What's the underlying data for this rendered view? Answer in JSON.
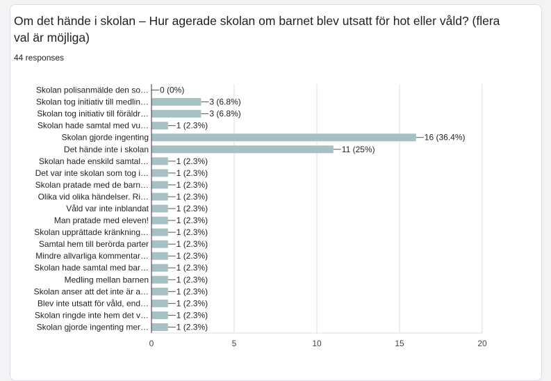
{
  "question": {
    "title": "Om det hände i skolan – Hur agerade skolan om barnet blev utsatt för hot eller våld? (flera val är möjliga)",
    "responses": "44 responses"
  },
  "colors": {
    "bar": "#a7c0c4",
    "grid": "#dddddd",
    "axis": "#333333"
  },
  "chart_data": {
    "type": "bar",
    "orientation": "horizontal",
    "title": "",
    "xlabel": "",
    "ylabel": "",
    "xlim": [
      0,
      20
    ],
    "xticks": [
      0,
      5,
      10,
      15,
      20
    ],
    "grid": true,
    "categories": [
      "Skolan polisanmälde den so…",
      "Skolan tog initiativ till medlin…",
      "Skolan tog initiativ till föräldr…",
      "Skolan hade samtal med vu…",
      "Skolan gjorde ingenting",
      "Det hände inte i skolan",
      "Skolan hade enskild samtal…",
      "Det var inte skolan som tog i…",
      "Skolan pratade med de barn…",
      "Olika vid olika händelser. Ri…",
      "Våld var inte inblandat",
      "Man pratade med eleven!",
      "Skolan upprättade kränkning…",
      "Samtal hem till berörda parter",
      "Mindre allvarliga kommentar…",
      "Skolan hade samtal med bar…",
      "Medling mellan barnen",
      "Skolan anser att det inte är a…",
      "Blev inte utsatt för våld, end…",
      "Skolan ringde inte hem det v…",
      "Skolan gjorde ingenting mer…"
    ],
    "values": [
      0,
      3,
      3,
      1,
      16,
      11,
      1,
      1,
      1,
      1,
      1,
      1,
      1,
      1,
      1,
      1,
      1,
      1,
      1,
      1,
      1
    ],
    "value_labels": [
      "0 (0%)",
      "3 (6.8%)",
      "3 (6.8%)",
      "1 (2.3%)",
      "16 (36.4%)",
      "11 (25%)",
      "1 (2.3%)",
      "1 (2.3%)",
      "1 (2.3%)",
      "1 (2.3%)",
      "1 (2.3%)",
      "1 (2.3%)",
      "1 (2.3%)",
      "1 (2.3%)",
      "1 (2.3%)",
      "1 (2.3%)",
      "1 (2.3%)",
      "1 (2.3%)",
      "1 (2.3%)",
      "1 (2.3%)",
      "1 (2.3%)"
    ]
  }
}
